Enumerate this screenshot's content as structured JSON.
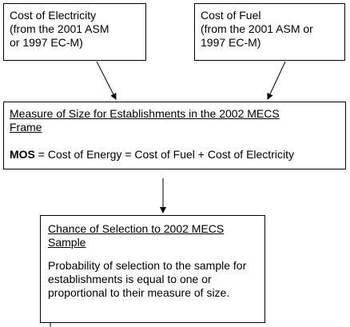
{
  "boxes": {
    "electricity": {
      "title": "Cost of Electricity",
      "line2": "(from the 2001 ASM",
      "line3": "or 1997 EC-M)"
    },
    "fuel": {
      "title": "Cost of Fuel",
      "line2": "(from the 2001 ASM or",
      "line3": "1997 EC-M)"
    },
    "mos": {
      "heading_line1": "Measure of Size for Establishments in the 2002 MECS",
      "heading_line2": "Frame",
      "abbr": "MOS",
      "formula": " = Cost of Energy = Cost of Fuel + Cost of Electricity"
    },
    "selection": {
      "heading_line1": "Chance of Selection to 2002 MECS",
      "heading_line2": "Sample",
      "body_line1": "Probability of selection to the sample for",
      "body_line2": "establishments is equal to one or",
      "body_line3": "proportional to their measure of size."
    }
  }
}
